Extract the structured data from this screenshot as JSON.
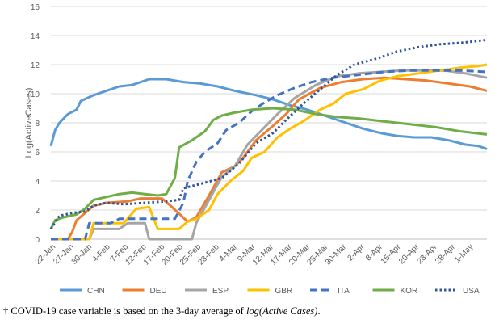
{
  "chart_data": {
    "type": "line",
    "ylabel": "Log(ActiveCases)",
    "xlabel": "",
    "ylim": [
      0,
      16
    ],
    "yticks": [
      0,
      2,
      4,
      6,
      8,
      10,
      12,
      14,
      16
    ],
    "grid": true,
    "legend_position": "bottom",
    "x_start": "22-Jan",
    "x_end": "3-May",
    "xtick_labels": [
      "22-Jan",
      "27-Jan",
      "30-Jan",
      "4-Feb",
      "7-Feb",
      "12-Feb",
      "17-Feb",
      "20-Feb",
      "25-Feb",
      "28-Feb",
      "4-Mar",
      "9-Mar",
      "12-Mar",
      "17-Mar",
      "20-Mar",
      "25-Mar",
      "30-Mar",
      "2-Apr",
      "8-Apr",
      "15-Apr",
      "20-Apr",
      "23-Apr",
      "28-Apr",
      "1-May"
    ],
    "series": [
      {
        "name": "CHN",
        "color": "#5B9BD5",
        "dash": "solid",
        "points": [
          [
            "22-Jan",
            6.4
          ],
          [
            "23-Jan",
            7.5
          ],
          [
            "24-Jan",
            8.0
          ],
          [
            "26-Jan",
            8.6
          ],
          [
            "28-Jan",
            8.9
          ],
          [
            "29-Jan",
            9.5
          ],
          [
            "1-Feb",
            9.9
          ],
          [
            "4-Feb",
            10.2
          ],
          [
            "7-Feb",
            10.5
          ],
          [
            "10-Feb",
            10.6
          ],
          [
            "14-Feb",
            11.0
          ],
          [
            "18-Feb",
            11.0
          ],
          [
            "22-Feb",
            10.8
          ],
          [
            "26-Feb",
            10.7
          ],
          [
            "1-Mar",
            10.5
          ],
          [
            "5-Mar",
            10.2
          ],
          [
            "10-Mar",
            9.9
          ],
          [
            "14-Mar",
            9.6
          ],
          [
            "18-Mar",
            9.2
          ],
          [
            "22-Mar",
            8.9
          ],
          [
            "26-Mar",
            8.5
          ],
          [
            "31-Mar",
            8.0
          ],
          [
            "4-Apr",
            7.6
          ],
          [
            "8-Apr",
            7.3
          ],
          [
            "12-Apr",
            7.1
          ],
          [
            "16-Apr",
            7.0
          ],
          [
            "20-Apr",
            7.0
          ],
          [
            "24-Apr",
            6.8
          ],
          [
            "28-Apr",
            6.5
          ],
          [
            "1-May",
            6.4
          ],
          [
            "3-May",
            6.2
          ]
        ]
      },
      {
        "name": "DEU",
        "color": "#ED7D31",
        "dash": "solid",
        "points": [
          [
            "22-Jan",
            0
          ],
          [
            "26-Jan",
            0
          ],
          [
            "27-Jan",
            0.5
          ],
          [
            "28-Jan",
            1.3
          ],
          [
            "30-Jan",
            1.8
          ],
          [
            "1-Feb",
            2.3
          ],
          [
            "4-Feb",
            2.5
          ],
          [
            "9-Feb",
            2.6
          ],
          [
            "12-Feb",
            2.8
          ],
          [
            "17-Feb",
            2.8
          ],
          [
            "19-Feb",
            2.3
          ],
          [
            "23-Feb",
            1.2
          ],
          [
            "25-Feb",
            1.5
          ],
          [
            "28-Feb",
            3.0
          ],
          [
            "2-Mar",
            4.6
          ],
          [
            "5-Mar",
            5.0
          ],
          [
            "7-Mar",
            5.6
          ],
          [
            "10-Mar",
            6.8
          ],
          [
            "14-Mar",
            7.8
          ],
          [
            "17-Mar",
            8.6
          ],
          [
            "20-Mar",
            9.6
          ],
          [
            "25-Mar",
            10.4
          ],
          [
            "30-Mar",
            10.8
          ],
          [
            "4-Apr",
            11.0
          ],
          [
            "9-Apr",
            11.1
          ],
          [
            "14-Apr",
            11.0
          ],
          [
            "19-Apr",
            10.9
          ],
          [
            "24-Apr",
            10.7
          ],
          [
            "29-Apr",
            10.5
          ],
          [
            "3-May",
            10.2
          ]
        ]
      },
      {
        "name": "ESP",
        "color": "#A5A5A5",
        "dash": "solid",
        "points": [
          [
            "22-Jan",
            0
          ],
          [
            "31-Jan",
            0
          ],
          [
            "1-Feb",
            0.7
          ],
          [
            "7-Feb",
            0.7
          ],
          [
            "9-Feb",
            1.1
          ],
          [
            "13-Feb",
            1.1
          ],
          [
            "14-Feb",
            0
          ],
          [
            "24-Feb",
            0
          ],
          [
            "25-Feb",
            1.1
          ],
          [
            "28-Feb",
            2.7
          ],
          [
            "2-Mar",
            4.3
          ],
          [
            "5-Mar",
            5.0
          ],
          [
            "8-Mar",
            6.5
          ],
          [
            "11-Mar",
            7.4
          ],
          [
            "15-Mar",
            8.6
          ],
          [
            "19-Mar",
            9.7
          ],
          [
            "24-Mar",
            10.6
          ],
          [
            "29-Mar",
            11.2
          ],
          [
            "3-Apr",
            11.4
          ],
          [
            "8-Apr",
            11.5
          ],
          [
            "13-Apr",
            11.6
          ],
          [
            "18-Apr",
            11.6
          ],
          [
            "23-Apr",
            11.6
          ],
          [
            "28-Apr",
            11.4
          ],
          [
            "3-May",
            11.1
          ]
        ]
      },
      {
        "name": "GBR",
        "color": "#FFC000",
        "dash": "solid",
        "points": [
          [
            "22-Jan",
            0
          ],
          [
            "31-Jan",
            0
          ],
          [
            "1-Feb",
            1.1
          ],
          [
            "8-Feb",
            1.1
          ],
          [
            "11-Feb",
            2.1
          ],
          [
            "14-Feb",
            2.2
          ],
          [
            "16-Feb",
            0.7
          ],
          [
            "21-Feb",
            0.7
          ],
          [
            "23-Feb",
            1.2
          ],
          [
            "25-Feb",
            1.4
          ],
          [
            "28-Feb",
            2.0
          ],
          [
            "1-Mar",
            3.1
          ],
          [
            "4-Mar",
            4.0
          ],
          [
            "7-Mar",
            4.7
          ],
          [
            "9-Mar",
            5.6
          ],
          [
            "12-Mar",
            6.0
          ],
          [
            "15-Mar",
            7.0
          ],
          [
            "18-Mar",
            7.6
          ],
          [
            "21-Mar",
            8.1
          ],
          [
            "25-Mar",
            8.9
          ],
          [
            "28-Mar",
            9.3
          ],
          [
            "31-Mar",
            10.0
          ],
          [
            "4-Apr",
            10.3
          ],
          [
            "8-Apr",
            10.9
          ],
          [
            "12-Apr",
            11.2
          ],
          [
            "17-Apr",
            11.4
          ],
          [
            "22-Apr",
            11.6
          ],
          [
            "27-Apr",
            11.8
          ],
          [
            "1-May",
            11.9
          ],
          [
            "3-May",
            12.0
          ]
        ]
      },
      {
        "name": "ITA",
        "color": "#4472C4",
        "dash": "dash",
        "points": [
          [
            "22-Jan",
            0
          ],
          [
            "30-Jan",
            0
          ],
          [
            "31-Jan",
            1.1
          ],
          [
            "5-Feb",
            1.1
          ],
          [
            "7-Feb",
            1.4
          ],
          [
            "20-Feb",
            1.4
          ],
          [
            "22-Feb",
            2.5
          ],
          [
            "23-Feb",
            4.0
          ],
          [
            "25-Feb",
            5.3
          ],
          [
            "27-Feb",
            6.0
          ],
          [
            "1-Mar",
            6.6
          ],
          [
            "3-Mar",
            7.5
          ],
          [
            "6-Mar",
            8.0
          ],
          [
            "9-Mar",
            8.8
          ],
          [
            "12-Mar",
            9.4
          ],
          [
            "15-Mar",
            9.9
          ],
          [
            "19-Mar",
            10.4
          ],
          [
            "23-Mar",
            10.8
          ],
          [
            "28-Mar",
            11.1
          ],
          [
            "3-Apr",
            11.3
          ],
          [
            "9-Apr",
            11.5
          ],
          [
            "15-Apr",
            11.6
          ],
          [
            "21-Apr",
            11.6
          ],
          [
            "27-Apr",
            11.6
          ],
          [
            "3-May",
            11.5
          ]
        ]
      },
      {
        "name": "KOR",
        "color": "#70AD47",
        "dash": "solid",
        "points": [
          [
            "22-Jan",
            0.7
          ],
          [
            "23-Jan",
            1.3
          ],
          [
            "25-Jan",
            1.5
          ],
          [
            "28-Jan",
            1.7
          ],
          [
            "30-Jan",
            2.1
          ],
          [
            "1-Feb",
            2.7
          ],
          [
            "4-Feb",
            2.9
          ],
          [
            "7-Feb",
            3.1
          ],
          [
            "10-Feb",
            3.2
          ],
          [
            "13-Feb",
            3.1
          ],
          [
            "16-Feb",
            3.0
          ],
          [
            "18-Feb",
            3.1
          ],
          [
            "20-Feb",
            4.2
          ],
          [
            "21-Feb",
            6.3
          ],
          [
            "24-Feb",
            6.8
          ],
          [
            "27-Feb",
            7.4
          ],
          [
            "29-Feb",
            8.2
          ],
          [
            "2-Mar",
            8.5
          ],
          [
            "5-Mar",
            8.7
          ],
          [
            "9-Mar",
            8.9
          ],
          [
            "14-Mar",
            9.0
          ],
          [
            "19-Mar",
            8.9
          ],
          [
            "24-Mar",
            8.6
          ],
          [
            "29-Mar",
            8.4
          ],
          [
            "3-Apr",
            8.3
          ],
          [
            "9-Apr",
            8.1
          ],
          [
            "15-Apr",
            7.9
          ],
          [
            "21-Apr",
            7.7
          ],
          [
            "27-Apr",
            7.4
          ],
          [
            "3-May",
            7.2
          ]
        ]
      },
      {
        "name": "USA",
        "color": "#2F5597",
        "dash": "dot",
        "points": [
          [
            "22-Jan",
            0.7
          ],
          [
            "24-Jan",
            1.6
          ],
          [
            "27-Jan",
            1.8
          ],
          [
            "30-Jan",
            1.9
          ],
          [
            "1-Feb",
            2.3
          ],
          [
            "4-Feb",
            2.5
          ],
          [
            "8-Feb",
            2.4
          ],
          [
            "13-Feb",
            2.5
          ],
          [
            "18-Feb",
            2.6
          ],
          [
            "21-Feb",
            2.7
          ],
          [
            "22-Feb",
            3.5
          ],
          [
            "26-Feb",
            3.8
          ],
          [
            "2-Mar",
            4.2
          ],
          [
            "6-Mar",
            5.2
          ],
          [
            "10-Mar",
            6.6
          ],
          [
            "14-Mar",
            7.3
          ],
          [
            "17-Mar",
            8.2
          ],
          [
            "21-Mar",
            9.3
          ],
          [
            "25-Mar",
            10.3
          ],
          [
            "29-Mar",
            11.3
          ],
          [
            "2-Apr",
            12.0
          ],
          [
            "7-Apr",
            12.4
          ],
          [
            "12-Apr",
            12.9
          ],
          [
            "17-Apr",
            13.2
          ],
          [
            "22-Apr",
            13.4
          ],
          [
            "27-Apr",
            13.5
          ],
          [
            "3-May",
            13.7
          ]
        ]
      }
    ]
  },
  "footnote": {
    "prefix": "† COVID-19 case variable is based on the 3-day average of ",
    "emphasis": "log(Active Cases)",
    "suffix": "."
  }
}
